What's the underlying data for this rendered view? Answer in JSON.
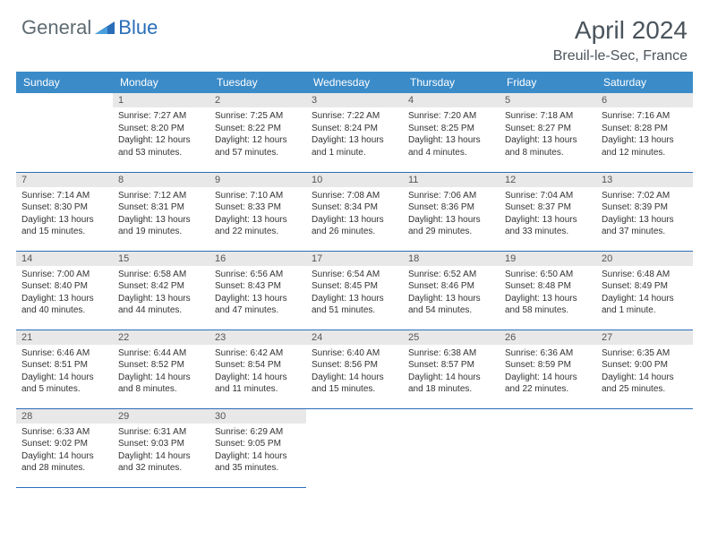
{
  "logo": {
    "text1": "General",
    "text2": "Blue"
  },
  "title": "April 2024",
  "location": "Breuil-le-Sec, France",
  "colors": {
    "header_blue": "#3b8bc9",
    "divider_blue": "#2a6db8",
    "daynum_bg": "#e8e8e8",
    "logo_grey": "#5f6b72",
    "logo_blue": "#2a6db8",
    "title_grey": "#4a545c"
  },
  "day_headers": [
    "Sunday",
    "Monday",
    "Tuesday",
    "Wednesday",
    "Thursday",
    "Friday",
    "Saturday"
  ],
  "weeks": [
    [
      {
        "day": "",
        "lines": []
      },
      {
        "day": "1",
        "lines": [
          "Sunrise: 7:27 AM",
          "Sunset: 8:20 PM",
          "Daylight: 12 hours and 53 minutes."
        ]
      },
      {
        "day": "2",
        "lines": [
          "Sunrise: 7:25 AM",
          "Sunset: 8:22 PM",
          "Daylight: 12 hours and 57 minutes."
        ]
      },
      {
        "day": "3",
        "lines": [
          "Sunrise: 7:22 AM",
          "Sunset: 8:24 PM",
          "Daylight: 13 hours and 1 minute."
        ]
      },
      {
        "day": "4",
        "lines": [
          "Sunrise: 7:20 AM",
          "Sunset: 8:25 PM",
          "Daylight: 13 hours and 4 minutes."
        ]
      },
      {
        "day": "5",
        "lines": [
          "Sunrise: 7:18 AM",
          "Sunset: 8:27 PM",
          "Daylight: 13 hours and 8 minutes."
        ]
      },
      {
        "day": "6",
        "lines": [
          "Sunrise: 7:16 AM",
          "Sunset: 8:28 PM",
          "Daylight: 13 hours and 12 minutes."
        ]
      }
    ],
    [
      {
        "day": "7",
        "lines": [
          "Sunrise: 7:14 AM",
          "Sunset: 8:30 PM",
          "Daylight: 13 hours and 15 minutes."
        ]
      },
      {
        "day": "8",
        "lines": [
          "Sunrise: 7:12 AM",
          "Sunset: 8:31 PM",
          "Daylight: 13 hours and 19 minutes."
        ]
      },
      {
        "day": "9",
        "lines": [
          "Sunrise: 7:10 AM",
          "Sunset: 8:33 PM",
          "Daylight: 13 hours and 22 minutes."
        ]
      },
      {
        "day": "10",
        "lines": [
          "Sunrise: 7:08 AM",
          "Sunset: 8:34 PM",
          "Daylight: 13 hours and 26 minutes."
        ]
      },
      {
        "day": "11",
        "lines": [
          "Sunrise: 7:06 AM",
          "Sunset: 8:36 PM",
          "Daylight: 13 hours and 29 minutes."
        ]
      },
      {
        "day": "12",
        "lines": [
          "Sunrise: 7:04 AM",
          "Sunset: 8:37 PM",
          "Daylight: 13 hours and 33 minutes."
        ]
      },
      {
        "day": "13",
        "lines": [
          "Sunrise: 7:02 AM",
          "Sunset: 8:39 PM",
          "Daylight: 13 hours and 37 minutes."
        ]
      }
    ],
    [
      {
        "day": "14",
        "lines": [
          "Sunrise: 7:00 AM",
          "Sunset: 8:40 PM",
          "Daylight: 13 hours and 40 minutes."
        ]
      },
      {
        "day": "15",
        "lines": [
          "Sunrise: 6:58 AM",
          "Sunset: 8:42 PM",
          "Daylight: 13 hours and 44 minutes."
        ]
      },
      {
        "day": "16",
        "lines": [
          "Sunrise: 6:56 AM",
          "Sunset: 8:43 PM",
          "Daylight: 13 hours and 47 minutes."
        ]
      },
      {
        "day": "17",
        "lines": [
          "Sunrise: 6:54 AM",
          "Sunset: 8:45 PM",
          "Daylight: 13 hours and 51 minutes."
        ]
      },
      {
        "day": "18",
        "lines": [
          "Sunrise: 6:52 AM",
          "Sunset: 8:46 PM",
          "Daylight: 13 hours and 54 minutes."
        ]
      },
      {
        "day": "19",
        "lines": [
          "Sunrise: 6:50 AM",
          "Sunset: 8:48 PM",
          "Daylight: 13 hours and 58 minutes."
        ]
      },
      {
        "day": "20",
        "lines": [
          "Sunrise: 6:48 AM",
          "Sunset: 8:49 PM",
          "Daylight: 14 hours and 1 minute."
        ]
      }
    ],
    [
      {
        "day": "21",
        "lines": [
          "Sunrise: 6:46 AM",
          "Sunset: 8:51 PM",
          "Daylight: 14 hours and 5 minutes."
        ]
      },
      {
        "day": "22",
        "lines": [
          "Sunrise: 6:44 AM",
          "Sunset: 8:52 PM",
          "Daylight: 14 hours and 8 minutes."
        ]
      },
      {
        "day": "23",
        "lines": [
          "Sunrise: 6:42 AM",
          "Sunset: 8:54 PM",
          "Daylight: 14 hours and 11 minutes."
        ]
      },
      {
        "day": "24",
        "lines": [
          "Sunrise: 6:40 AM",
          "Sunset: 8:56 PM",
          "Daylight: 14 hours and 15 minutes."
        ]
      },
      {
        "day": "25",
        "lines": [
          "Sunrise: 6:38 AM",
          "Sunset: 8:57 PM",
          "Daylight: 14 hours and 18 minutes."
        ]
      },
      {
        "day": "26",
        "lines": [
          "Sunrise: 6:36 AM",
          "Sunset: 8:59 PM",
          "Daylight: 14 hours and 22 minutes."
        ]
      },
      {
        "day": "27",
        "lines": [
          "Sunrise: 6:35 AM",
          "Sunset: 9:00 PM",
          "Daylight: 14 hours and 25 minutes."
        ]
      }
    ],
    [
      {
        "day": "28",
        "lines": [
          "Sunrise: 6:33 AM",
          "Sunset: 9:02 PM",
          "Daylight: 14 hours and 28 minutes."
        ]
      },
      {
        "day": "29",
        "lines": [
          "Sunrise: 6:31 AM",
          "Sunset: 9:03 PM",
          "Daylight: 14 hours and 32 minutes."
        ]
      },
      {
        "day": "30",
        "lines": [
          "Sunrise: 6:29 AM",
          "Sunset: 9:05 PM",
          "Daylight: 14 hours and 35 minutes."
        ]
      },
      {
        "day": "",
        "lines": []
      },
      {
        "day": "",
        "lines": []
      },
      {
        "day": "",
        "lines": []
      },
      {
        "day": "",
        "lines": []
      }
    ]
  ]
}
